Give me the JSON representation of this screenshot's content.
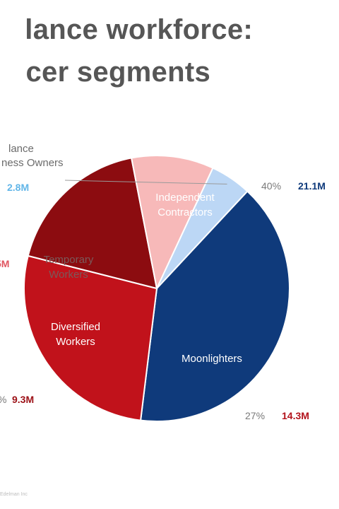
{
  "title": {
    "line1": "lance workforce:",
    "line2": "cer segments"
  },
  "footer": "Edelman Inc",
  "colors": {
    "independent": "#0f3a7b",
    "moonlighters": "#c1121b",
    "diversified": "#8c0c10",
    "temporary": "#f7b9b9",
    "business_owners": "#bcd7f5"
  },
  "chart_data": {
    "type": "pie",
    "slices": [
      {
        "key": "independent",
        "label": [
          "Independent",
          "Contractors"
        ],
        "percent": 40,
        "percent_text": "40%",
        "value_text": "21.1M",
        "color": "#0f3a7b",
        "label_color": "#ffffff",
        "value_color": "#0f3a7b"
      },
      {
        "key": "moonlighters",
        "label": [
          "Moonlighters"
        ],
        "percent": 27,
        "percent_text": "27%",
        "value_text": "14.3M",
        "color": "#c1121b",
        "label_color": "#ffffff",
        "value_color": "#b3121b"
      },
      {
        "key": "diversified",
        "label": [
          "Diversified",
          "Workers"
        ],
        "percent": 18,
        "percent_text": "%",
        "value_text": "9.3M",
        "color": "#8c0c10",
        "label_color": "#ffffff",
        "value_color": "#9c1016"
      },
      {
        "key": "temporary",
        "label": [
          "Temporary",
          "Workers"
        ],
        "percent": 10,
        "percent_text": "",
        "value_text": "5M",
        "color": "#f7b9b9",
        "label_color": "#7a5a5a",
        "value_color": "#e05560"
      },
      {
        "key": "business_owners",
        "label": [
          "lance",
          "ness Owners"
        ],
        "percent": 5,
        "percent_text": "",
        "value_text": "2.8M",
        "color": "#bcd7f5",
        "label_color": "#6b6b6b",
        "value_color": "#62b6e8"
      }
    ]
  }
}
